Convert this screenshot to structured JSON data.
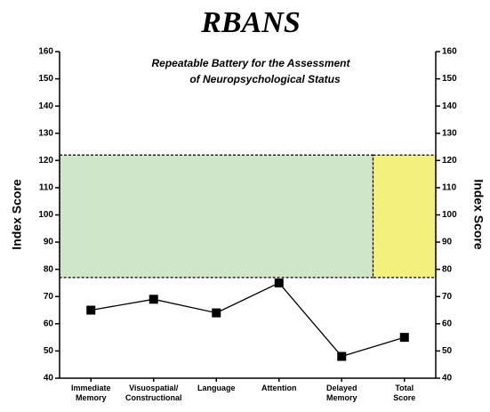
{
  "chart_data": {
    "type": "line",
    "title": "RBANS",
    "subtitle": [
      "Repeatable Battery for the Assessment",
      "of Neuropsychological Status"
    ],
    "ylabel": "Index Score",
    "y2label": "Index Score",
    "categories": [
      "Immediate\nMemory",
      "Visuospatial/\nConstructional",
      "Language",
      "Attention",
      "Delayed\nMemory",
      "Total\nScore"
    ],
    "series": [
      {
        "color": "#000000",
        "values": [
          65,
          69,
          64,
          75,
          48,
          55
        ]
      }
    ],
    "ylim": [
      40,
      160
    ],
    "yticks": [
      40,
      50,
      60,
      70,
      80,
      90,
      100,
      110,
      120,
      130,
      140,
      150,
      160
    ],
    "y2lim": [
      40,
      160
    ],
    "y2ticks": [
      40,
      50,
      60,
      70,
      80,
      90,
      100,
      110,
      120,
      130,
      140,
      150,
      160
    ],
    "regions": [
      {
        "range": [
          77,
          122
        ],
        "color": "#cfe7c8",
        "span": 5
      },
      {
        "range": [
          77,
          122
        ],
        "color": "#f4f07c",
        "span": 1
      }
    ]
  }
}
